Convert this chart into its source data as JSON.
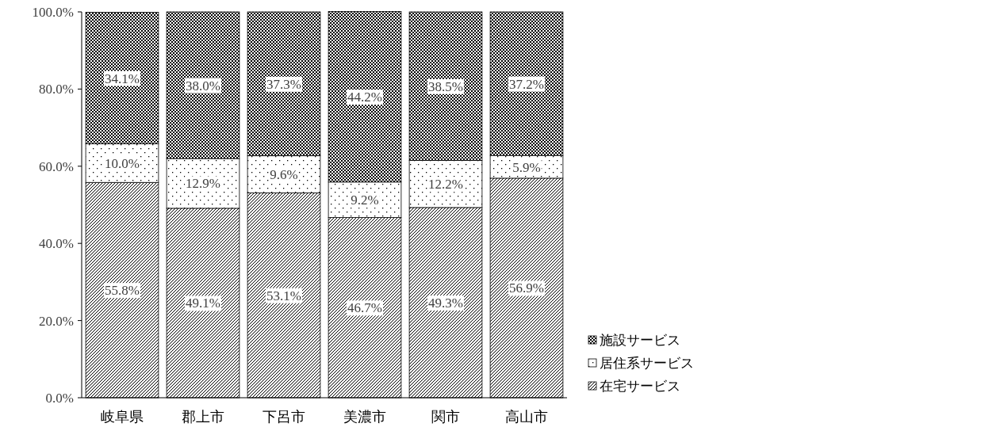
{
  "chart_data": {
    "type": "bar",
    "stacked": true,
    "legend": "right",
    "categories": [
      "岐阜県",
      "郡上市",
      "下呂市",
      "美濃市",
      "関市",
      "高山市"
    ],
    "ylim": [
      0,
      100
    ],
    "yticks": [
      {
        "value": 0,
        "label": "0.0%"
      },
      {
        "value": 20,
        "label": "20.0%"
      },
      {
        "value": 40,
        "label": "40.0%"
      },
      {
        "value": 60,
        "label": "60.0%"
      },
      {
        "value": 80,
        "label": "80.0%"
      },
      {
        "value": 100,
        "label": "100.0%"
      }
    ],
    "series": [
      {
        "name": "在宅サービス",
        "color": "#000000",
        "values": [
          55.8,
          49.1,
          53.1,
          46.7,
          49.3,
          56.9
        ],
        "value_labels": [
          "55.8%",
          "49.1%",
          "53.1%",
          "46.7%",
          "49.3%",
          "56.9%"
        ]
      },
      {
        "name": "居住系サービス",
        "color": "#000000",
        "values": [
          10.0,
          12.9,
          9.6,
          9.2,
          12.2,
          5.9
        ],
        "value_labels": [
          "10.0%",
          "12.9%",
          "9.6%",
          "9.2%",
          "12.2%",
          "5.9%"
        ]
      },
      {
        "name": "施設サービス",
        "color": "#000000",
        "values": [
          34.1,
          38.0,
          37.3,
          44.2,
          38.5,
          37.2
        ],
        "value_labels": [
          "34.1%",
          "38.0%",
          "37.3%",
          "44.2%",
          "38.5%",
          "37.2%"
        ]
      }
    ]
  }
}
